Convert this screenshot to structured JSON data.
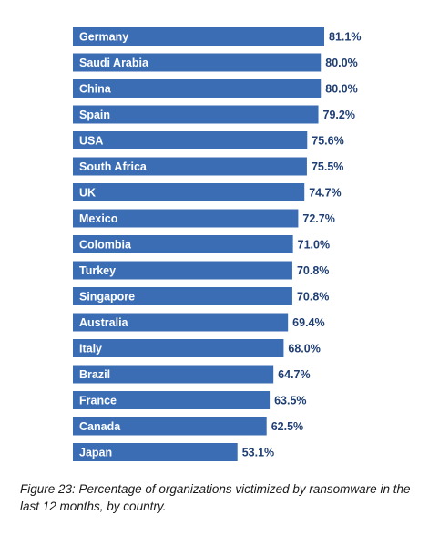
{
  "chart_data": {
    "type": "bar",
    "orientation": "horizontal",
    "categories": [
      "Germany",
      "Saudi Arabia",
      "China",
      "Spain",
      "USA",
      "South Africa",
      "UK",
      "Mexico",
      "Colombia",
      "Turkey",
      "Singapore",
      "Australia",
      "Italy",
      "Brazil",
      "France",
      "Canada",
      "Japan"
    ],
    "values": [
      81.1,
      80.0,
      80.0,
      79.2,
      75.6,
      75.5,
      74.7,
      72.7,
      71.0,
      70.8,
      70.8,
      69.4,
      68.0,
      64.7,
      63.5,
      62.5,
      53.1
    ],
    "value_labels": [
      "81.1%",
      "80.0%",
      "80.0%",
      "79.2%",
      "75.6%",
      "75.5%",
      "74.7%",
      "72.7%",
      "71.0%",
      "70.8%",
      "70.8%",
      "69.4%",
      "68.0%",
      "64.7%",
      "63.5%",
      "62.5%",
      "53.1%"
    ],
    "unit": "%",
    "bar_color": "#3b6db5",
    "value_label_color": "#1f3f74",
    "xlim": [
      0,
      81.1
    ],
    "grid": false,
    "legend": "none"
  },
  "caption": "Figure 23: Percentage of organizations victimized by ransomware in the last 12 months, by country."
}
